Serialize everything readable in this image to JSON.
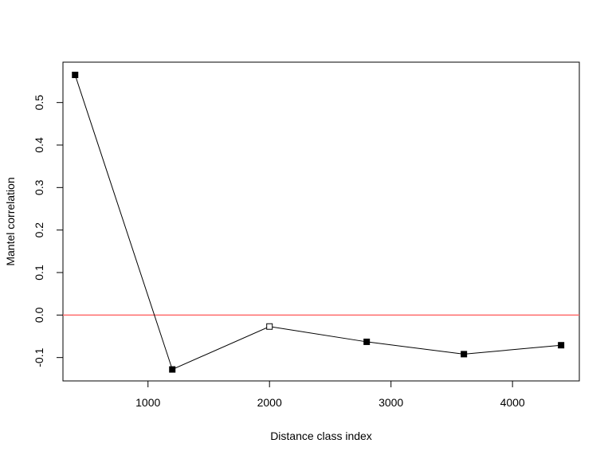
{
  "chart_data": {
    "type": "line",
    "title": "",
    "xlabel": "Distance class index",
    "ylabel": "Mantel correlation",
    "xlim": [
      300,
      4550
    ],
    "ylim": [
      -0.155,
      0.595
    ],
    "x_ticks": [
      1000,
      2000,
      3000,
      4000
    ],
    "y_ticks": [
      -0.1,
      0.0,
      0.1,
      0.2,
      0.3,
      0.4,
      0.5
    ],
    "x_tick_labels": [
      "1000",
      "2000",
      "3000",
      "4000"
    ],
    "y_tick_labels": [
      "-0.1",
      "0.0",
      "0.1",
      "0.2",
      "0.3",
      "0.4",
      "0.5"
    ],
    "grid": false,
    "legend": "none",
    "reference_line": {
      "y": 0.0,
      "color": "#ff6b6b"
    },
    "series": [
      {
        "x": [
          400,
          1200,
          2000,
          2800,
          3600,
          4400
        ],
        "y": [
          0.565,
          -0.128,
          -0.027,
          -0.063,
          -0.092,
          -0.071
        ],
        "marker_filled": [
          true,
          true,
          false,
          true,
          true,
          true
        ],
        "color": "#000000"
      }
    ]
  }
}
